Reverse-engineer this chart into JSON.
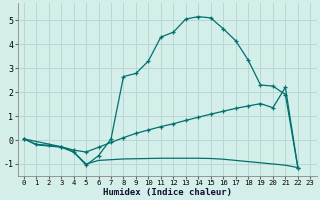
{
  "xlabel": "Humidex (Indice chaleur)",
  "background_color": "#d4eeea",
  "grid_color": "#b8d8d4",
  "line_color": "#007070",
  "xlim": [
    -0.5,
    23.5
  ],
  "ylim": [
    -1.5,
    5.7
  ],
  "yticks": [
    -1,
    0,
    1,
    2,
    3,
    4,
    5
  ],
  "xticks": [
    0,
    1,
    2,
    3,
    4,
    5,
    6,
    7,
    8,
    9,
    10,
    11,
    12,
    13,
    14,
    15,
    16,
    17,
    18,
    19,
    20,
    21,
    22,
    23
  ],
  "line1_x": [
    0,
    1,
    2,
    3,
    4,
    5,
    6,
    7,
    8,
    9,
    10,
    11,
    12,
    13,
    14,
    15,
    16,
    17,
    18,
    19,
    20,
    21,
    22
  ],
  "line1_y": [
    0.05,
    -0.2,
    -0.25,
    -0.3,
    -0.5,
    -1.0,
    -0.85,
    -0.82,
    -0.79,
    -0.78,
    -0.77,
    -0.76,
    -0.76,
    -0.76,
    -0.76,
    -0.77,
    -0.8,
    -0.85,
    -0.9,
    -0.95,
    -1.0,
    -1.05,
    -1.15
  ],
  "line2_x": [
    0,
    1,
    2,
    3,
    4,
    5,
    6,
    7,
    8,
    9,
    10,
    11,
    12,
    13,
    14,
    15,
    16,
    17,
    18,
    19,
    20,
    21,
    22
  ],
  "line2_y": [
    0.05,
    -0.18,
    -0.22,
    -0.28,
    -0.42,
    -0.5,
    -0.3,
    -0.1,
    0.1,
    0.28,
    0.42,
    0.56,
    0.68,
    0.82,
    0.95,
    1.08,
    1.2,
    1.32,
    1.42,
    1.52,
    1.35,
    2.2,
    -1.15
  ],
  "line3_x": [
    0,
    3,
    4,
    5,
    6,
    7,
    8,
    9,
    10,
    11,
    12,
    13,
    14,
    15,
    16,
    17,
    18,
    19,
    20,
    21,
    22
  ],
  "line3_y": [
    0.05,
    -0.28,
    -0.5,
    -1.05,
    -0.65,
    0.05,
    2.65,
    2.78,
    3.3,
    4.3,
    4.5,
    5.05,
    5.15,
    5.1,
    4.65,
    4.15,
    3.35,
    2.3,
    2.25,
    1.9,
    -1.15
  ]
}
